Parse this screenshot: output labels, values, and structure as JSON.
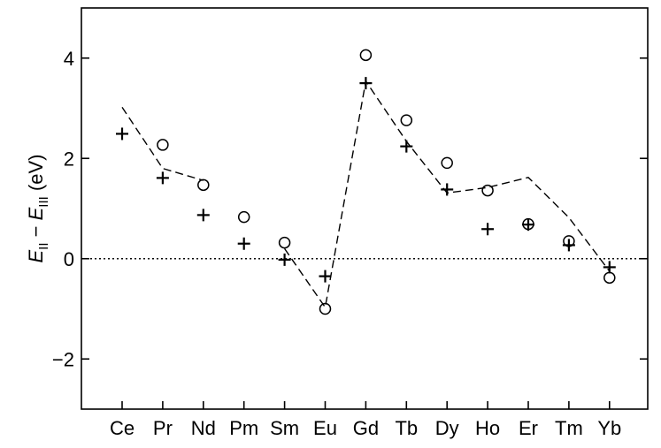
{
  "chart_data": {
    "type": "scatter",
    "title": "",
    "ylabel": {
      "main": "E",
      "sub1": "II",
      "dash": " − ",
      "main2": "E",
      "sub2": "III",
      "unit": " (eV)"
    },
    "xlabel": "",
    "categories": [
      "Ce",
      "Pr",
      "Nd",
      "Pm",
      "Sm",
      "Eu",
      "Gd",
      "Tb",
      "Dy",
      "Ho",
      "Er",
      "Tm",
      "Yb"
    ],
    "ylim": [
      -3,
      5
    ],
    "yticks": [
      -2,
      0,
      2,
      4
    ],
    "ytick_labels": [
      "−2",
      "0",
      "2",
      "4"
    ],
    "reference_line": {
      "y": 0,
      "style": "dotted"
    },
    "series": [
      {
        "marker": "circle",
        "values": [
          null,
          2.27,
          1.47,
          0.83,
          0.32,
          -1.0,
          4.06,
          2.76,
          1.91,
          1.36,
          0.69,
          0.35,
          -0.38
        ]
      },
      {
        "marker": "plus",
        "values": [
          2.49,
          1.61,
          0.87,
          0.3,
          -0.02,
          -0.35,
          3.5,
          2.24,
          1.38,
          0.59,
          0.68,
          0.27,
          -0.17
        ]
      },
      {
        "line": "dashed",
        "values": [
          3.02,
          1.8,
          1.56,
          null,
          0.2,
          -0.97,
          3.54,
          2.34,
          1.31,
          1.42,
          1.62,
          0.82,
          -0.25
        ]
      }
    ],
    "grid": false,
    "legend": "none"
  }
}
